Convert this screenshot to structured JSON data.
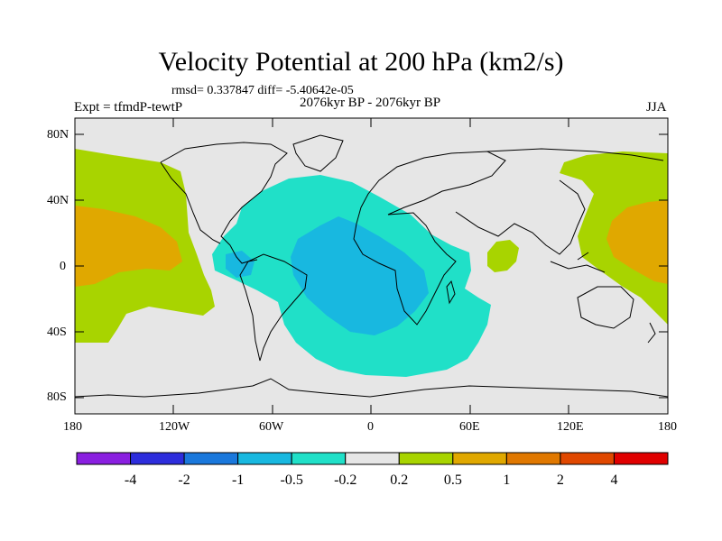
{
  "title": "Velocity Potential at 200 hPa (km2/s)",
  "stats": "rmsd= 0.337847 diff= -5.40642e-05",
  "subtitle": "2076kyr BP - 2076kyr BP",
  "experiment": "Expt = tfmdP-tewtP",
  "season": "JJA",
  "lat_ticks": [
    "80N",
    "40N",
    "0",
    "40S",
    "80S"
  ],
  "lon_ticks": [
    "180",
    "120W",
    "60W",
    "0",
    "60E",
    "120E",
    "180"
  ],
  "colorbar": {
    "labels": [
      "-4",
      "-2",
      "-1",
      "-0.5",
      "-0.2",
      "0.2",
      "0.5",
      "1",
      "2",
      "4"
    ],
    "colors": [
      "#8a1fe0",
      "#2d2ddc",
      "#1a78dc",
      "#18b8e0",
      "#20e0c8",
      "#e6e6e6",
      "#a8d400",
      "#e0a800",
      "#e07800",
      "#e04800",
      "#e00000"
    ]
  },
  "fields": {
    "ocean_bg": "#e6e6e6",
    "positive_weak": "#a8d400",
    "positive_mid": "#e0a800",
    "negative_weak": "#20e0c8",
    "negative_mid": "#18b8e0"
  }
}
